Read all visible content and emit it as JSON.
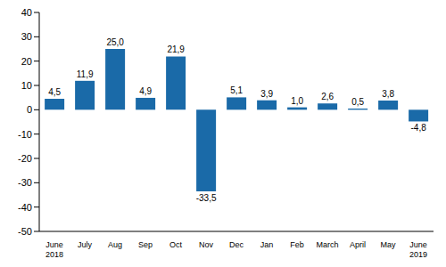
{
  "chart_data": {
    "type": "bar",
    "categories": [
      "June 2018",
      "July",
      "Aug",
      "Sep",
      "Oct",
      "Nov",
      "Dec",
      "Jan",
      "Feb",
      "March",
      "April",
      "May",
      "June 2019"
    ],
    "values": [
      4.5,
      11.9,
      25.0,
      4.9,
      21.9,
      -33.5,
      5.1,
      3.9,
      1.0,
      2.6,
      0.5,
      3.8,
      -4.8
    ],
    "value_labels": [
      "4,5",
      "11,9",
      "25,0",
      "4,9",
      "21,9",
      "-33,5",
      "5,1",
      "3,9",
      "1,0",
      "2,6",
      "0,5",
      "3,8",
      "-4,8"
    ],
    "color": "#1a6aa8",
    "ylim": [
      -50,
      40
    ],
    "yticks": [
      -50,
      -40,
      -30,
      -20,
      -10,
      0,
      10,
      20,
      30,
      40
    ],
    "grid": false,
    "data_labels": true
  }
}
